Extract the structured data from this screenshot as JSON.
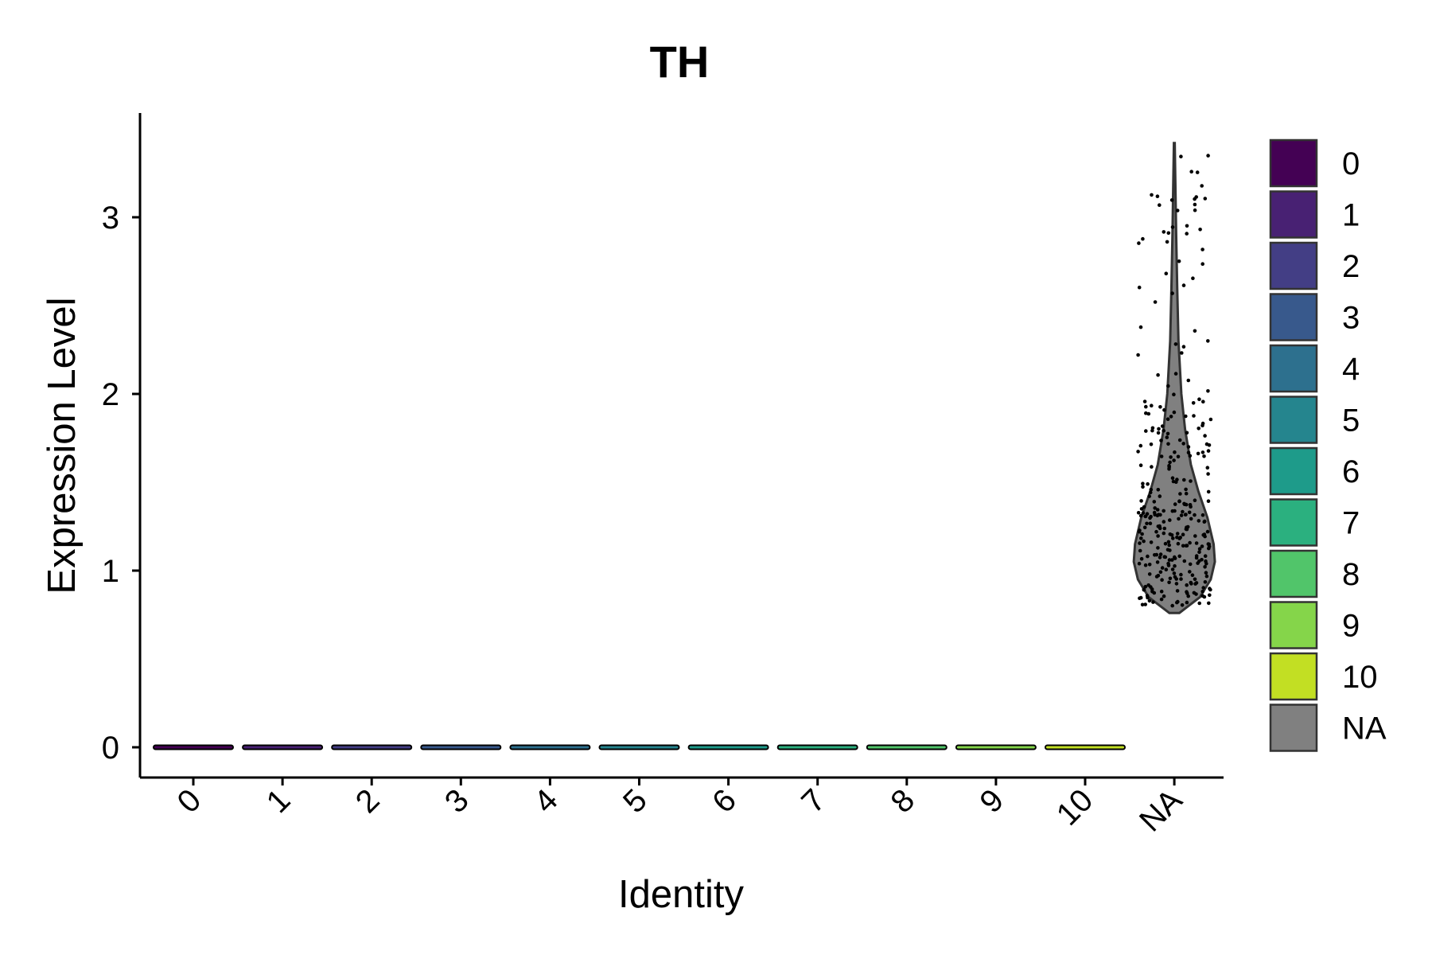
{
  "chart_data": {
    "type": "violin",
    "title": "TH",
    "xlabel": "Identity",
    "ylabel": "Expression Level",
    "categories": [
      "0",
      "1",
      "2",
      "3",
      "4",
      "5",
      "6",
      "7",
      "8",
      "9",
      "10",
      "NA"
    ],
    "y_ticks": [
      0,
      1,
      2,
      3
    ],
    "ylim": [
      -0.17,
      3.6
    ],
    "grid": false,
    "legend_position": "right",
    "legend": [
      {
        "label": "0",
        "color": "#440154"
      },
      {
        "label": "1",
        "color": "#482173"
      },
      {
        "label": "2",
        "color": "#433E85"
      },
      {
        "label": "3",
        "color": "#38598C"
      },
      {
        "label": "4",
        "color": "#2D708E"
      },
      {
        "label": "5",
        "color": "#25858E"
      },
      {
        "label": "6",
        "color": "#1E9B8A"
      },
      {
        "label": "7",
        "color": "#2BB07F"
      },
      {
        "label": "8",
        "color": "#51C56A"
      },
      {
        "label": "9",
        "color": "#85D54A"
      },
      {
        "label": "10",
        "color": "#C2DF23"
      },
      {
        "label": "NA",
        "color": "#808080"
      }
    ],
    "series": [
      {
        "category": "0",
        "min": 0,
        "max": 0
      },
      {
        "category": "1",
        "min": 0,
        "max": 0
      },
      {
        "category": "2",
        "min": 0,
        "max": 0
      },
      {
        "category": "3",
        "min": 0,
        "max": 0
      },
      {
        "category": "4",
        "min": 0,
        "max": 0
      },
      {
        "category": "5",
        "min": 0,
        "max": 0
      },
      {
        "category": "6",
        "min": 0,
        "max": 0
      },
      {
        "category": "7",
        "min": 0,
        "max": 0
      },
      {
        "category": "8",
        "min": 0,
        "max": 0
      },
      {
        "category": "9",
        "min": 0,
        "max": 0
      },
      {
        "category": "10",
        "min": 0,
        "max": 0
      },
      {
        "category": "NA",
        "min": 0.76,
        "max": 3.42,
        "density": [
          [
            0.76,
            0.12
          ],
          [
            0.85,
            0.62
          ],
          [
            0.95,
            0.88
          ],
          [
            1.05,
            0.98
          ],
          [
            1.15,
            0.95
          ],
          [
            1.3,
            0.8
          ],
          [
            1.45,
            0.58
          ],
          [
            1.6,
            0.4
          ],
          [
            1.8,
            0.26
          ],
          [
            2.0,
            0.17
          ],
          [
            2.3,
            0.1
          ],
          [
            2.6,
            0.07
          ],
          [
            2.9,
            0.045
          ],
          [
            3.2,
            0.025
          ],
          [
            3.42,
            0.01
          ]
        ]
      }
    ]
  }
}
